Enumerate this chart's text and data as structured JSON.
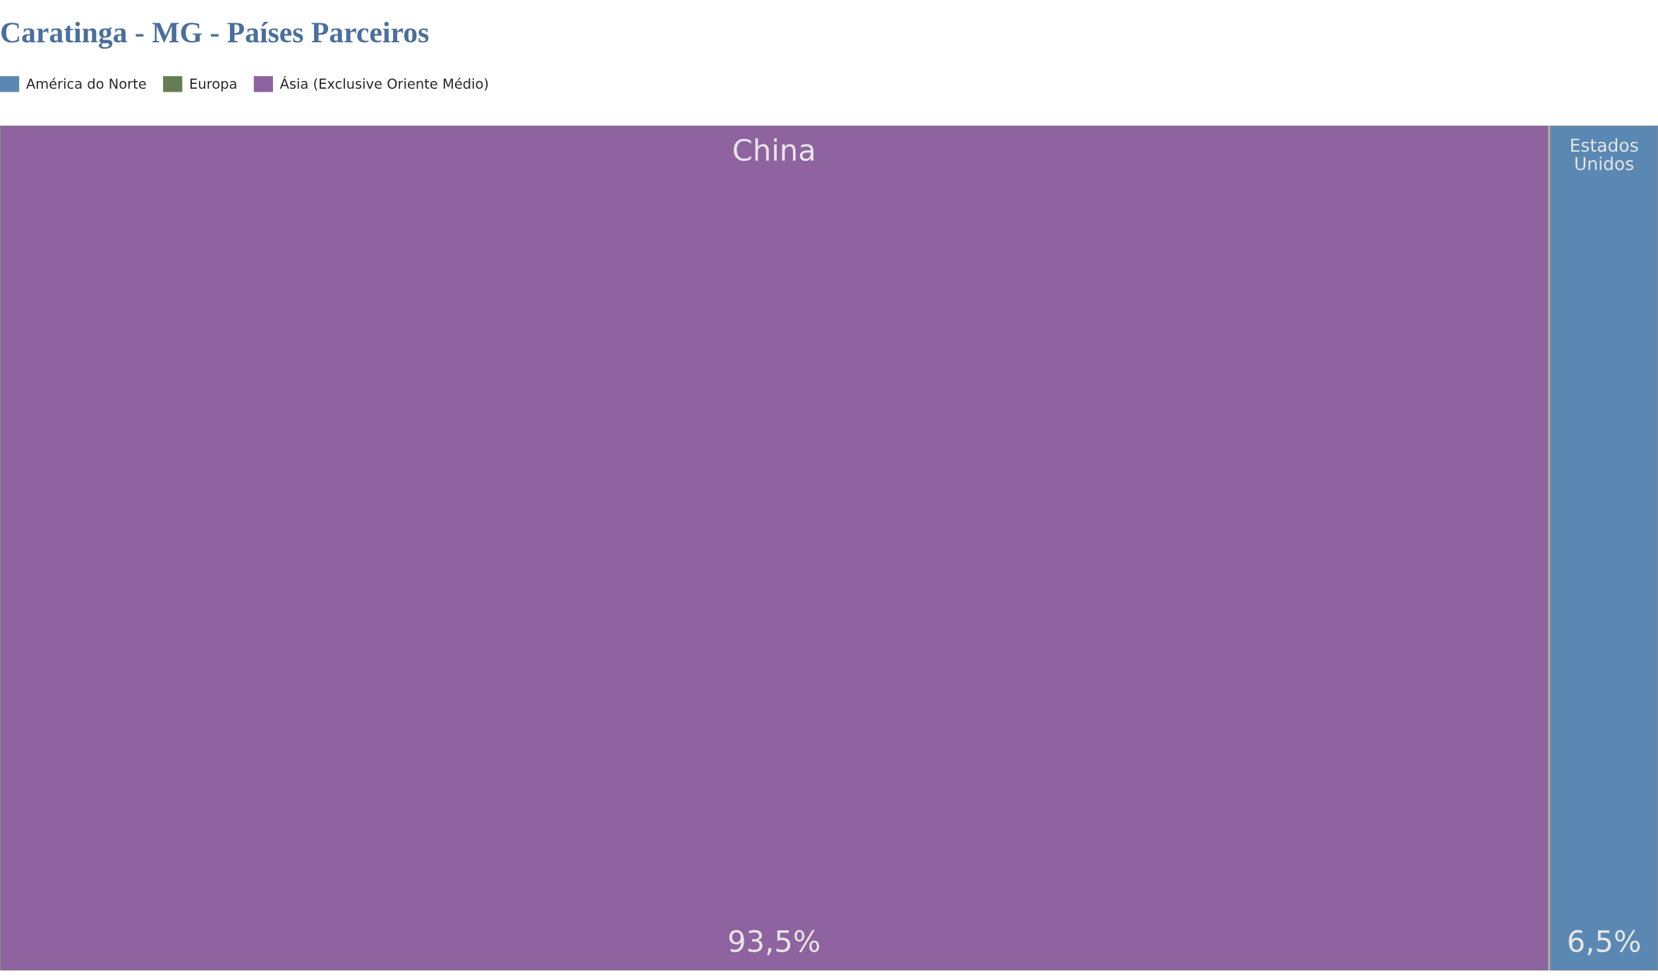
{
  "chart_data": {
    "type": "other",
    "title": "Caratinga - MG - Países Parceiros",
    "categories": [
      "China",
      "Estados Unidos"
    ],
    "series": [
      {
        "name": "América do Norte",
        "color": "#5b88b3",
        "values": [
          null,
          6.5
        ],
        "value_labels": [
          null,
          "6,5%"
        ]
      },
      {
        "name": "Europa",
        "color": "#647d51",
        "values": [
          null,
          null
        ],
        "value_labels": [
          null,
          null
        ]
      },
      {
        "name": "Ásia (Exclusive Oriente Médio)",
        "color": "#8e63a0",
        "values": [
          93.5,
          null
        ],
        "value_labels": [
          "93,5%",
          null
        ]
      }
    ],
    "legend": "top left"
  }
}
